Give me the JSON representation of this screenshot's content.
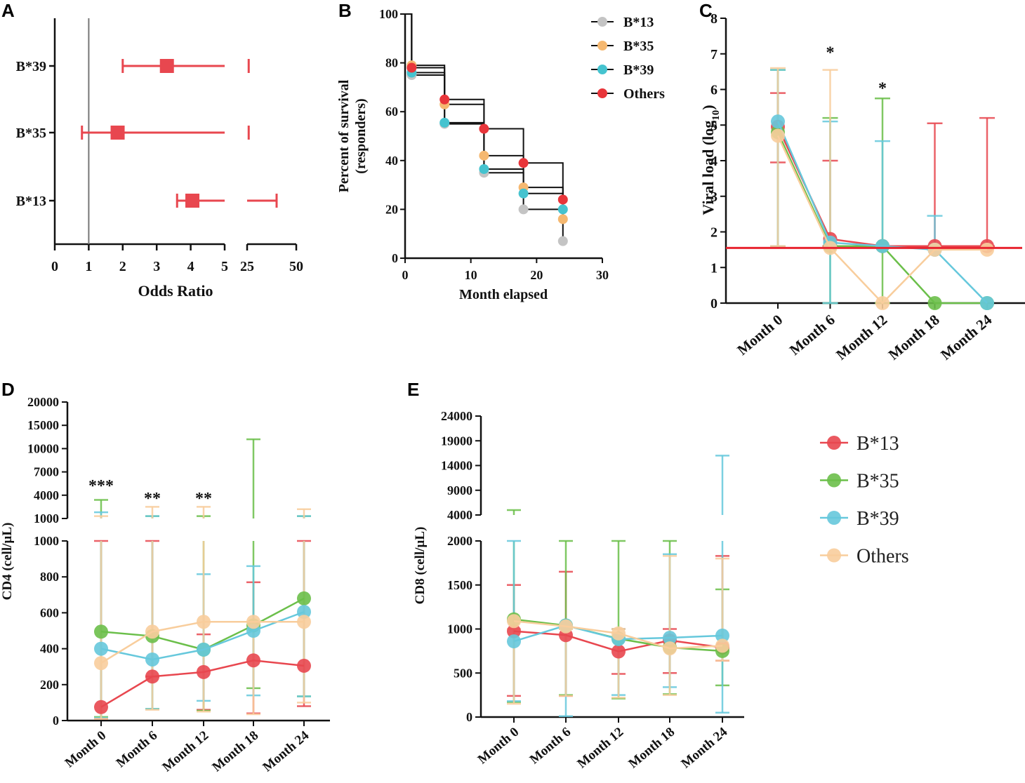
{
  "colors": {
    "B13": "#e8474f",
    "B35": "#f5b870",
    "B39": "#45c3cf",
    "Others": "#e8353a",
    "grey": "#c4c4c4",
    "green": "#6bbf4a",
    "peach": "#f8cd9c",
    "red": "#e8474f",
    "cyan": "#66c8dc"
  },
  "panels": {
    "A": "A",
    "B": "B",
    "C": "C",
    "D": "D",
    "E": "E"
  },
  "chart_data": [
    {
      "id": "A",
      "type": "forest",
      "xlabel": "Odds Ratio",
      "xticks_left": [
        "0",
        "1",
        "2",
        "3",
        "4",
        "5"
      ],
      "xticks_right": [
        "25",
        "50"
      ],
      "reference_line": 1,
      "rows": [
        {
          "label": "B*39",
          "or": 3.3,
          "lo": 2.0,
          "hi": 5.0,
          "hi_break": 25.8
        },
        {
          "label": "B*35",
          "or": 1.85,
          "lo": 0.8,
          "hi": 5.0,
          "hi_break": 25.8
        },
        {
          "label": "B*13",
          "or": 4.05,
          "lo": 3.6,
          "hi": 5.0,
          "hi_break": 40.0
        }
      ]
    },
    {
      "id": "B",
      "type": "line",
      "subtype": "kaplan-meier",
      "xlabel": "Month elapsed",
      "ylabel": "Percent of survival (responders)",
      "ylabel_lines": [
        "Percent of survival",
        "(responders)"
      ],
      "xlim": [
        0,
        30
      ],
      "ylim": [
        0,
        100
      ],
      "xticks": [
        "0",
        "10",
        "20",
        "30"
      ],
      "yticks": [
        "0",
        "20",
        "40",
        "60",
        "80",
        "100"
      ],
      "series": [
        {
          "name": "B*13",
          "x": [
            1,
            6,
            12,
            18,
            24
          ],
          "y": [
            75,
            55,
            35,
            20,
            7
          ]
        },
        {
          "name": "B*35",
          "x": [
            1,
            6,
            12,
            18,
            24
          ],
          "y": [
            79,
            63,
            42,
            29,
            16
          ]
        },
        {
          "name": "B*39",
          "x": [
            1,
            6,
            12,
            18,
            24
          ],
          "y": [
            76,
            55.5,
            36.5,
            26.5,
            20
          ]
        },
        {
          "name": "Others",
          "x": [
            1,
            6,
            12,
            18,
            24
          ],
          "y": [
            78,
            65,
            53,
            39,
            24
          ]
        }
      ]
    },
    {
      "id": "C",
      "type": "line",
      "ylabel": "Viral load (log10)",
      "ylabel_main": "Viral load (log",
      "ylabel_sub": "10",
      "ylabel_end": ")",
      "ylim": [
        0,
        8
      ],
      "yticks": [
        "0",
        "1",
        "2",
        "3",
        "4",
        "5",
        "6",
        "7",
        "8"
      ],
      "categories": [
        "Month 0",
        "Month 6",
        "Month 12",
        "Month 18",
        "Month 24"
      ],
      "threshold": 1.55,
      "significance": [
        {
          "index": 1,
          "label": "*",
          "y": 7.2
        },
        {
          "index": 2,
          "label": "*",
          "y": 6.2
        }
      ],
      "series": [
        {
          "name": "B*13",
          "values": [
            4.95,
            1.8,
            1.6,
            1.6,
            1.6
          ],
          "err_hi": [
            5.9,
            4.0,
            1.6,
            5.05,
            5.2
          ],
          "err_lo": [
            3.95,
            1.6,
            1.6,
            1.6,
            1.6
          ]
        },
        {
          "name": "B*35",
          "values": [
            4.8,
            1.6,
            1.6,
            0,
            0
          ],
          "err_hi": [
            6.55,
            5.2,
            5.75,
            0,
            0
          ],
          "err_lo": [
            1.6,
            0,
            0,
            0,
            0
          ]
        },
        {
          "name": "B*39",
          "values": [
            5.1,
            1.7,
            1.6,
            1.5,
            0
          ],
          "err_hi": [
            6.55,
            5.1,
            4.55,
            2.45,
            0
          ],
          "err_lo": [
            1.6,
            0,
            1.6,
            1.5,
            0
          ]
        },
        {
          "name": "Others",
          "values": [
            4.7,
            1.55,
            0,
            1.5,
            1.5
          ],
          "err_hi": [
            6.6,
            6.55,
            0,
            1.5,
            1.5
          ],
          "err_lo": [
            1.6,
            1.55,
            0,
            1.5,
            1.5
          ]
        }
      ]
    },
    {
      "id": "D",
      "type": "line",
      "ylabel": "CD4 (cell/µL)",
      "categories": [
        "Month 0",
        "Month 6",
        "Month 12",
        "Month 18",
        "Month 24"
      ],
      "yticks_lower": [
        "0",
        "200",
        "400",
        "600",
        "800",
        "1000"
      ],
      "yticks_upper": [
        "1000",
        "4000",
        "7000",
        "10000",
        "15000",
        "20000"
      ],
      "significance": [
        {
          "index": 0,
          "label": "***"
        },
        {
          "index": 1,
          "label": "**"
        },
        {
          "index": 2,
          "label": "**"
        }
      ],
      "series": [
        {
          "name": "B*13",
          "values": [
            75,
            245,
            270,
            335,
            305
          ],
          "err_hi": [
            1000,
            1000,
            480,
            770,
            1000
          ],
          "err_lo": [
            10,
            245,
            60,
            40,
            80
          ]
        },
        {
          "name": "B*35",
          "values": [
            495,
            470,
            395,
            530,
            680
          ],
          "err_hi": [
            3400,
            1300,
            1300,
            12000,
            1300
          ],
          "err_lo": [
            20,
            65,
            55,
            180,
            135
          ]
        },
        {
          "name": "B*39",
          "values": [
            400,
            340,
            395,
            500,
            605
          ],
          "err_hi": [
            1800,
            1300,
            815,
            860,
            1300
          ],
          "err_lo": [
            15,
            65,
            110,
            140,
            135
          ]
        },
        {
          "name": "Others",
          "values": [
            320,
            495,
            550,
            550,
            550
          ],
          "err_hi": [
            1300,
            2500,
            2500,
            550,
            2200
          ],
          "err_lo": [
            10,
            60,
            50,
            35,
            100
          ]
        }
      ]
    },
    {
      "id": "E",
      "type": "line",
      "ylabel": "CD8 (cell/µL)",
      "categories": [
        "Month 0",
        "Month 6",
        "Month 12",
        "Month 18",
        "Month 24"
      ],
      "yticks_lower": [
        "0",
        "500",
        "1000",
        "1500",
        "2000"
      ],
      "yticks_upper": [
        "4000",
        "9000",
        "14000",
        "19000",
        "24000"
      ],
      "series": [
        {
          "name": "B*13",
          "values": [
            975,
            930,
            745,
            870,
            790
          ],
          "err_hi": [
            1500,
            1650,
            1000,
            1000,
            1830
          ],
          "err_lo": [
            240,
            240,
            490,
            500,
            640
          ]
        },
        {
          "name": "B*35",
          "values": [
            1110,
            1040,
            890,
            790,
            750
          ],
          "err_hi": [
            5000,
            2000,
            2000,
            2000,
            1450
          ],
          "err_lo": [
            170,
            250,
            210,
            260,
            360
          ]
        },
        {
          "name": "B*39",
          "values": [
            860,
            1040,
            885,
            900,
            925
          ],
          "err_hi": [
            2000,
            1000,
            1000,
            1850,
            16000
          ],
          "err_lo": [
            180,
            10,
            250,
            340,
            50
          ]
        },
        {
          "name": "Others",
          "values": [
            1090,
            1030,
            950,
            780,
            810
          ],
          "err_hi": [
            1000,
            1000,
            1000,
            1830,
            1800
          ],
          "err_lo": [
            150,
            240,
            220,
            250,
            640
          ]
        }
      ]
    }
  ],
  "legend_b": [
    "B*13",
    "B*35",
    "B*39",
    "Others"
  ],
  "legend_de": [
    "B*13",
    "B*35",
    "B*39",
    "Others"
  ]
}
